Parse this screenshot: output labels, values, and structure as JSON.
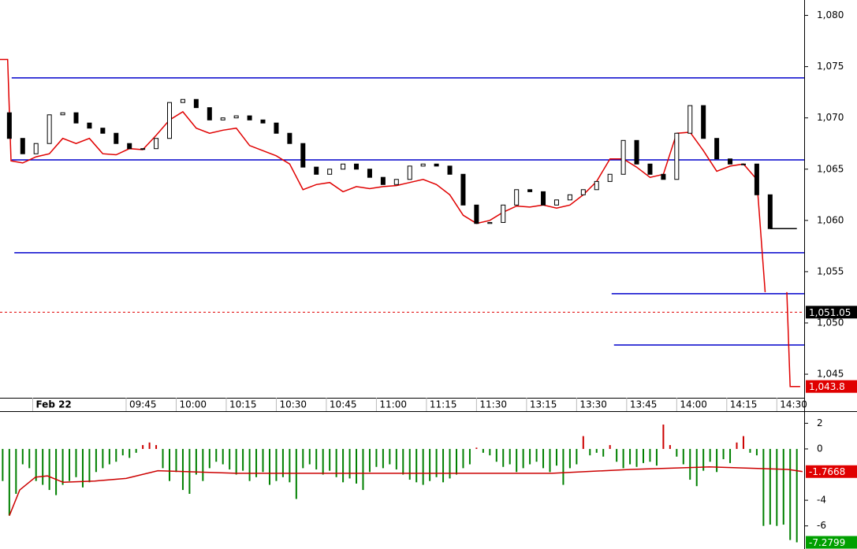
{
  "chart_data": [
    {
      "type": "candlestick",
      "xlim": [
        -22.8,
        218.2
      ],
      "ylim": [
        1042.7,
        1081.5
      ],
      "yticks": [
        {
          "value": 1045,
          "label": "1,045"
        },
        {
          "value": 1050,
          "label": "1,050"
        },
        {
          "value": 1055,
          "label": "1,055"
        },
        {
          "value": 1060,
          "label": "1,060"
        },
        {
          "value": 1065,
          "label": "1,065"
        },
        {
          "value": 1070,
          "label": "1,070"
        },
        {
          "value": 1075,
          "label": "1,075"
        },
        {
          "value": 1080,
          "label": "1,080"
        }
      ],
      "xticks": [
        {
          "value": -13,
          "label": "Feb 22"
        },
        {
          "value": 15,
          "label": "09:45"
        },
        {
          "value": 30,
          "label": "10:00"
        },
        {
          "value": 45,
          "label": "10:15"
        },
        {
          "value": 60,
          "label": "10:30"
        },
        {
          "value": 75,
          "label": "10:45"
        },
        {
          "value": 90,
          "label": "11:00"
        },
        {
          "value": 105,
          "label": "11:15"
        },
        {
          "value": 120,
          "label": "11:30"
        },
        {
          "value": 135,
          "label": "13:15"
        },
        {
          "value": 150,
          "label": "13:30"
        },
        {
          "value": 165,
          "label": "13:45"
        },
        {
          "value": 180,
          "label": "14:00"
        },
        {
          "value": 195,
          "label": "14:15"
        },
        {
          "value": 210,
          "label": "14:30"
        }
      ],
      "x": [
        -20,
        -16,
        -12,
        -8,
        -4,
        0,
        4,
        8,
        12,
        16,
        20,
        24,
        28,
        32,
        36,
        40,
        44,
        48,
        52,
        56,
        60,
        64,
        68,
        72,
        76,
        80,
        84,
        88,
        92,
        96,
        100,
        104,
        108,
        112,
        116,
        120,
        124,
        128,
        132,
        136,
        140,
        144,
        148,
        152,
        156,
        160,
        164,
        168,
        172,
        176,
        180,
        184,
        188,
        192,
        196,
        200,
        204,
        208
      ],
      "open": [
        1070.5,
        1068,
        1066.5,
        1067.5,
        1070.3,
        1070.5,
        1069.5,
        1069,
        1068.5,
        1067.5,
        1067,
        1067,
        1068,
        1071.5,
        1071.8,
        1071,
        1069.8,
        1070,
        1070.2,
        1069.8,
        1069.5,
        1068.5,
        1067.5,
        1065.2,
        1064.5,
        1065,
        1065.5,
        1065,
        1064.2,
        1063.5,
        1064,
        1065.3,
        1065.5,
        1065.3,
        1064.5,
        1061.5,
        1059.7,
        1059.8,
        1061.5,
        1063,
        1062.8,
        1061.5,
        1062,
        1062.5,
        1063,
        1063.8,
        1064.5,
        1067.8,
        1065.5,
        1064.5,
        1064,
        1068.5,
        1071.2,
        1068,
        1066,
        1065.5,
        1065.5,
        1062.5
      ],
      "close": [
        1068,
        1066.5,
        1067.5,
        1070.3,
        1070.5,
        1069.5,
        1069,
        1068.5,
        1067.5,
        1067,
        1067,
        1068,
        1071.5,
        1071.8,
        1071,
        1069.8,
        1070,
        1070.2,
        1069.8,
        1069.5,
        1068.5,
        1067.5,
        1065.2,
        1064.5,
        1065,
        1065.5,
        1065,
        1064.2,
        1063.5,
        1064,
        1065.3,
        1065.5,
        1065.3,
        1064.5,
        1061.5,
        1059.7,
        1059.8,
        1061.5,
        1063,
        1062.8,
        1061.5,
        1062,
        1062.5,
        1063,
        1063.8,
        1064.5,
        1067.8,
        1065.5,
        1064.5,
        1064,
        1068.5,
        1071.2,
        1068,
        1066,
        1065.5,
        1065.5,
        1062.5,
        1059.2
      ],
      "up_color": "#ffffff",
      "down_color": "#000000",
      "lines": [
        {
          "color": "#e00000",
          "x": [
            -22.8,
            -20.5,
            -19.5,
            -16,
            -12,
            -8,
            -4,
            0,
            4,
            8,
            12,
            16,
            20,
            24,
            28,
            32,
            36,
            40,
            44,
            48,
            52,
            56,
            60,
            64,
            68,
            72,
            76,
            80,
            84,
            88,
            92,
            96,
            100,
            104,
            108,
            112,
            116,
            120,
            124,
            128,
            132,
            136,
            140,
            144,
            148,
            152,
            156,
            160,
            164,
            168,
            172,
            176,
            180,
            184,
            188,
            192,
            196,
            200,
            204,
            206.5,
            210,
            213,
            214,
            217
          ],
          "values": [
            1075.7,
            1075.7,
            1065.8,
            1065.6,
            1066.2,
            1066.5,
            1068,
            1067.5,
            1068,
            1066.5,
            1066.4,
            1067,
            1066.9,
            1068.3,
            1069.8,
            1070.6,
            1069,
            1068.5,
            1068.8,
            1069,
            1067.3,
            1066.8,
            1066.3,
            1065.5,
            1063,
            1063.5,
            1063.7,
            1062.8,
            1063.3,
            1063.1,
            1063.3,
            1063.4,
            1063.7,
            1064,
            1063.5,
            1062.5,
            1060.5,
            1059.7,
            1060,
            1060.8,
            1061.4,
            1061.3,
            1061.5,
            1061.2,
            1061.5,
            1062.5,
            1063.8,
            1066,
            1066,
            1065.2,
            1064.2,
            1064.5,
            1068.5,
            1068.6,
            1066.8,
            1064.8,
            1065.3,
            1065.5,
            1064,
            1053,
            null,
            1053,
            1043.8,
            1043.8
          ]
        },
        {
          "color": "#000000",
          "x": [
            208,
            216
          ],
          "values": [
            1059.2,
            1059.2
          ]
        }
      ],
      "levels": [
        {
          "value": 1073.9,
          "x_start": -19.3,
          "color": "#0000cc"
        },
        {
          "value": 1065.9,
          "x_start": -19.3,
          "color": "#0000cc"
        },
        {
          "value": 1056.85,
          "x_start": -18.5,
          "color": "#0000cc"
        },
        {
          "value": 1052.85,
          "x_start": 160.5,
          "color": "#0000cc"
        },
        {
          "value": 1047.85,
          "x_start": 161.2,
          "color": "#0000cc"
        }
      ],
      "price_line": {
        "value": 1051.05,
        "label": "1,051.05",
        "color": "#000000",
        "line_color": "#e00000"
      },
      "last_value": {
        "value": 1043.8,
        "label": "1,043.8",
        "color": "#e00000"
      }
    },
    {
      "type": "histogram",
      "xlim": [
        -22.8,
        218.2
      ],
      "ylim": [
        -7.8,
        2.76
      ],
      "yticks": [
        2,
        0,
        -4,
        -6
      ],
      "x": [
        -22,
        -20,
        -18,
        -16,
        -14,
        -12,
        -10,
        -8,
        -6,
        -4,
        -2,
        0,
        2,
        4,
        6,
        8,
        10,
        12,
        14,
        16,
        18,
        20,
        22,
        24,
        26,
        28,
        30,
        32,
        34,
        36,
        38,
        40,
        42,
        44,
        46,
        48,
        50,
        52,
        54,
        56,
        58,
        60,
        62,
        64,
        66,
        68,
        70,
        72,
        74,
        76,
        78,
        80,
        82,
        84,
        86,
        88,
        90,
        92,
        94,
        96,
        98,
        100,
        102,
        104,
        106,
        108,
        110,
        112,
        114,
        116,
        118,
        120,
        122,
        124,
        126,
        128,
        130,
        132,
        134,
        136,
        138,
        140,
        142,
        144,
        146,
        148,
        150,
        152,
        154,
        156,
        158,
        160,
        162,
        164,
        166,
        168,
        170,
        172,
        174,
        176,
        178,
        180,
        182,
        184,
        186,
        188,
        190,
        192,
        194,
        196,
        198,
        200,
        202,
        204,
        206,
        208,
        210,
        212,
        214,
        216
      ],
      "values": [
        -2.5,
        -5.2,
        -3.5,
        -1.2,
        -1.5,
        -2.5,
        -2.8,
        -3.2,
        -3.6,
        -2.8,
        -2.5,
        -2.2,
        -3,
        -2.6,
        -1.8,
        -1.5,
        -1.2,
        -1,
        -0.5,
        -0.7,
        -0.3,
        0.3,
        0.5,
        0.3,
        -1.5,
        -2.5,
        -1.8,
        -3.2,
        -3.5,
        -2,
        -2.5,
        -1.5,
        -1,
        -1.2,
        -1.6,
        -2,
        -1.7,
        -2.5,
        -2.2,
        -1.8,
        -2.8,
        -2.5,
        -2.2,
        -2.6,
        -3.9,
        -1.5,
        -1.2,
        -1.6,
        -2,
        -1.7,
        -2.2,
        -2.6,
        -2.3,
        -2.7,
        -3.2,
        -1.8,
        -1.4,
        -1.5,
        -1.2,
        -1.6,
        -2,
        -2.4,
        -2.6,
        -2.8,
        -2.5,
        -2.2,
        -2.6,
        -2.3,
        -2,
        -1.5,
        -1.2,
        0.1,
        -0.3,
        -0.5,
        -1,
        -1.4,
        -1.2,
        -1.8,
        -1.5,
        -1.2,
        -1,
        -1.5,
        -1.8,
        -1.3,
        -2.8,
        -1.5,
        -1.2,
        1,
        -0.5,
        -0.3,
        -0.6,
        0.3,
        -1,
        -1.5,
        -1.2,
        -1.4,
        -1.1,
        -1,
        -1.3,
        1.9,
        0.3,
        -0.6,
        -1.2,
        -2.4,
        -2.9,
        -1.7,
        -1,
        -1.8,
        -0.8,
        -1.1,
        0.5,
        1,
        -0.3,
        -0.5,
        -6,
        -5.9,
        -6,
        -5.9,
        -7.1,
        -7.28
      ],
      "up_color": "#cc0000",
      "down_color": "#008000",
      "line": {
        "color": "#cc0000",
        "x": [
          -20,
          -16.9,
          -12.2,
          -8.6,
          -3.9,
          5.6,
          15,
          24.5,
          48.1,
          71.7,
          95.3,
          118.9,
          142.6,
          166.2,
          189.8,
          201.6,
          213.4,
          217.7
        ],
        "values": [
          -5.2,
          -3.2,
          -2.2,
          -2.1,
          -2.6,
          -2.5,
          -2.3,
          -1.7,
          -1.9,
          -1.9,
          -1.9,
          -1.9,
          -1.9,
          -1.6,
          -1.4,
          -1.5,
          -1.6,
          -1.7668
        ]
      },
      "value_boxes": [
        {
          "value": -1.7668,
          "label": "-1.7668",
          "color": "#e00000"
        },
        {
          "value": -7.2799,
          "label": "-7.2799",
          "color": "#00a000"
        }
      ]
    }
  ]
}
